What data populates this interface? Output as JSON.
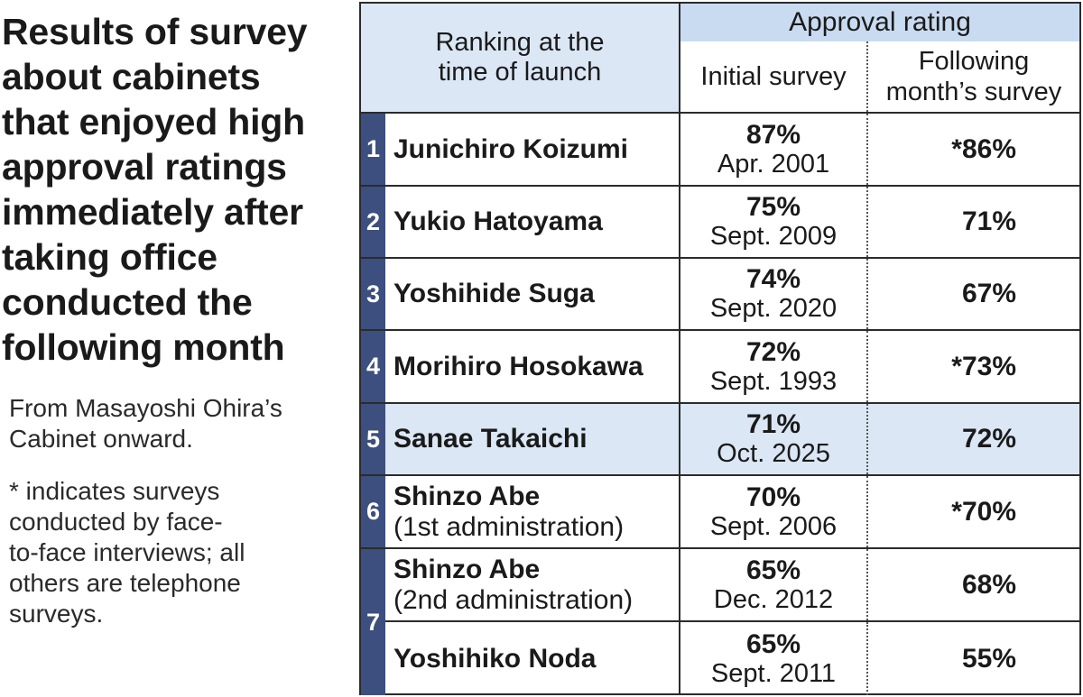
{
  "title": {
    "lines": [
      "Results of survey",
      "about cabinets",
      "that enjoyed high",
      "approval ratings",
      "immediately after",
      "taking office",
      "conducted the",
      "following month"
    ]
  },
  "notes": {
    "note1": [
      "From Masayoshi Ohira’s",
      "Cabinet onward."
    ],
    "note2": [
      " * indicates surveys",
      "conducted by face-",
      "to-face interviews; all",
      "others are telephone",
      "surveys."
    ]
  },
  "header": {
    "ranking": [
      "Ranking at the",
      "time of launch"
    ],
    "approval": "Approval rating",
    "initial": "Initial survey",
    "following": [
      "Following",
      "month’s survey"
    ]
  },
  "colors": {
    "rank_bg": "#3d4f7e",
    "header_bg": "#dbe7f5",
    "approval_bg": "#c9dbf0",
    "highlight_row": "#dbe7f5"
  },
  "chart_data": {
    "type": "table",
    "columns": [
      "Ranking at the time of launch",
      "Initial survey",
      "Following month’s survey"
    ],
    "rows": [
      {
        "rank": "1",
        "name": "Junichiro Koizumi",
        "sub": "",
        "initial": "87%",
        "date": "Apr. 2001",
        "following": "*86%",
        "highlight": false
      },
      {
        "rank": "2",
        "name": "Yukio Hatoyama",
        "sub": "",
        "initial": "75%",
        "date": "Sept. 2009",
        "following": "71%",
        "highlight": false
      },
      {
        "rank": "3",
        "name": "Yoshihide Suga",
        "sub": "",
        "initial": "74%",
        "date": "Sept. 2020",
        "following": "67%",
        "highlight": false
      },
      {
        "rank": "4",
        "name": "Morihiro Hosokawa",
        "sub": "",
        "initial": "72%",
        "date": "Sept. 1993",
        "following": "*73%",
        "highlight": false
      },
      {
        "rank": "5",
        "name": "Sanae Takaichi",
        "sub": "",
        "initial": "71%",
        "date": "Oct. 2025",
        "following": "72%",
        "highlight": true
      },
      {
        "rank": "6",
        "name": "Shinzo Abe",
        "sub": "(1st administration)",
        "initial": "70%",
        "date": "Sept. 2006",
        "following": "*70%",
        "highlight": false
      },
      {
        "rank": "",
        "name": "Shinzo Abe",
        "sub": "(2nd administration)",
        "initial": "65%",
        "date": "Dec. 2012",
        "following": "68%",
        "highlight": false
      },
      {
        "rank": "",
        "name": "Yoshihiko Noda",
        "sub": "",
        "initial": "65%",
        "date": "Sept. 2011",
        "following": "55%",
        "highlight": false
      }
    ],
    "shared_rank": "7"
  }
}
